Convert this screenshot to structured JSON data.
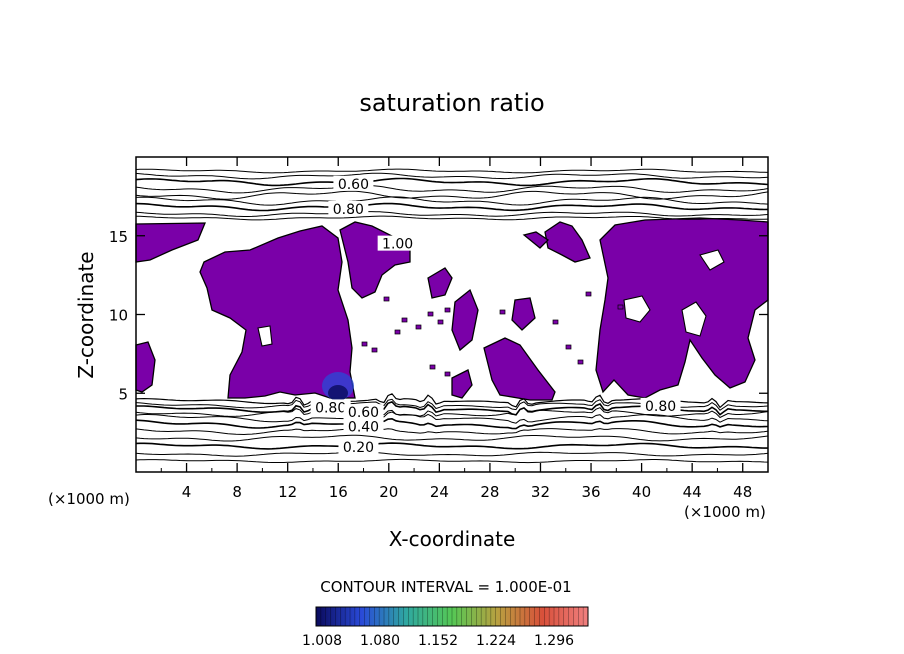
{
  "chart_data": {
    "type": "contour",
    "title": "saturation ratio",
    "xlabel": "X-coordinate",
    "ylabel": "Z-coordinate",
    "x_unit": "(×1000 m)",
    "z_unit": "(×1000 m)",
    "xlim": [
      0,
      50
    ],
    "ylim": [
      0,
      20
    ],
    "x_ticks": [
      "4",
      "8",
      "12",
      "16",
      "20",
      "24",
      "28",
      "32",
      "36",
      "40",
      "44",
      "48"
    ],
    "y_ticks": [
      "5",
      "10",
      "15"
    ],
    "contour_interval_text": "CONTOUR INTERVAL = 1.000E-01",
    "contour_levels": [
      {
        "label": "0.60",
        "x": 17.2,
        "z": 18.3
      },
      {
        "label": "0.80",
        "x": 16.8,
        "z": 16.7
      },
      {
        "label": "1.00",
        "x": 20.7,
        "z": 14.5
      },
      {
        "label": "0.80",
        "x": 15.4,
        "z": 4.1
      },
      {
        "label": "0.60",
        "x": 18.0,
        "z": 3.8
      },
      {
        "label": "0.40",
        "x": 18.0,
        "z": 2.9
      },
      {
        "label": "0.20",
        "x": 17.6,
        "z": 1.6
      },
      {
        "label": "0.80",
        "x": 41.5,
        "z": 4.2
      }
    ],
    "colorbar": {
      "ticks": [
        "1.008",
        "1.080",
        "1.152",
        "1.224",
        "1.296"
      ],
      "colors": [
        "#0a0a5c",
        "#2a4ad8",
        "#2fa8a0",
        "#55c855",
        "#b8a040",
        "#d8503a",
        "#f08080"
      ]
    },
    "fill_color": "#7a00a8"
  }
}
